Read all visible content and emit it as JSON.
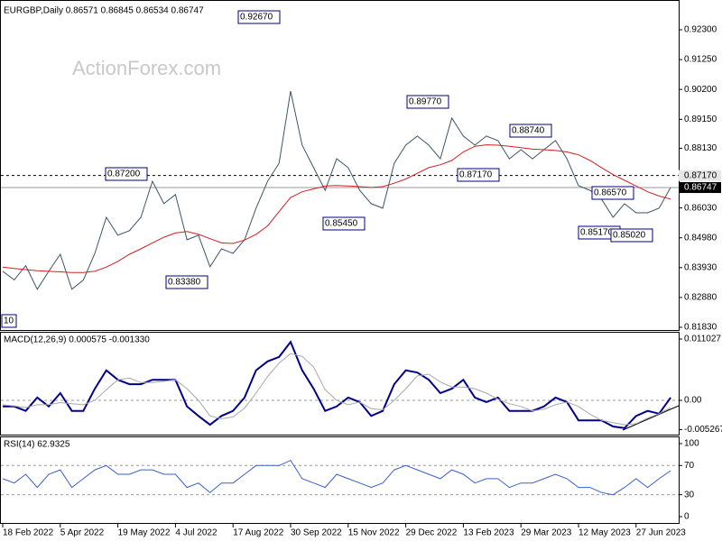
{
  "watermark": "ActionForex.com",
  "chart_data": [
    {
      "type": "line",
      "title": "EURGBP,Daily  0.86571 0.86845 0.86534 0.86747",
      "categories": [
        "18 Feb 2022",
        null,
        null,
        null,
        null,
        "5 Apr 2022",
        null,
        null,
        null,
        null,
        "19 May 2022",
        null,
        null,
        null,
        null,
        "4 Jul 2022",
        null,
        null,
        null,
        null,
        "17 Aug 2022",
        null,
        null,
        null,
        null,
        "30 Sep 2022",
        null,
        null,
        null,
        null,
        "15 Nov 2022",
        null,
        null,
        null,
        null,
        "29 Dec 2022",
        null,
        null,
        null,
        null,
        "13 Feb 2023",
        null,
        null,
        null,
        null,
        "29 Mar 2023",
        null,
        null,
        null,
        null,
        "12 May 2023",
        null,
        null,
        null,
        null,
        "27 Jun 2023",
        null,
        null,
        null
      ],
      "series": [
        {
          "color": "#3b5566",
          "values": [
            0.838,
            0.835,
            0.84,
            0.8317,
            0.838,
            0.844,
            0.8317,
            0.8349,
            0.8443,
            0.857,
            0.8507,
            0.8523,
            0.857,
            0.8697,
            0.8618,
            0.865,
            0.8491,
            0.8507,
            0.8396,
            0.8459,
            0.8443,
            0.8491,
            0.8602,
            0.8697,
            0.876,
            0.9014,
            0.8824,
            0.8745,
            0.8665,
            0.8776,
            0.8745,
            0.8665,
            0.8618,
            0.8602,
            0.876,
            0.8824,
            0.8856,
            0.8824,
            0.8776,
            0.8919,
            0.8856,
            0.8824,
            0.8856,
            0.884,
            0.8776,
            0.8808,
            0.8776,
            0.8808,
            0.884,
            0.8776,
            0.8681,
            0.8665,
            0.8634,
            0.857,
            0.8618,
            0.8586,
            0.8586,
            0.8602,
            0.8675
          ]
        },
        {
          "color": "#d42020",
          "values": [
            0.8395,
            0.839,
            0.8386,
            0.8382,
            0.838,
            0.8378,
            0.8376,
            0.8376,
            0.838,
            0.8395,
            0.8415,
            0.844,
            0.8459,
            0.848,
            0.85,
            0.8515,
            0.852,
            0.851,
            0.8495,
            0.848,
            0.8478,
            0.849,
            0.851,
            0.854,
            0.859,
            0.864,
            0.866,
            0.867,
            0.868,
            0.8682,
            0.868,
            0.8678,
            0.8675,
            0.8678,
            0.869,
            0.8705,
            0.8725,
            0.8745,
            0.8755,
            0.877,
            0.88,
            0.882,
            0.8825,
            0.8824,
            0.882,
            0.8815,
            0.881,
            0.8808,
            0.8805,
            0.88,
            0.879,
            0.877,
            0.8745,
            0.872,
            0.87,
            0.868,
            0.866,
            0.8645,
            0.8634
          ]
        }
      ],
      "ylim": [
        0.81703,
        0.93315
      ],
      "yticks": [
        {
          "value": 0.923,
          "label": "0.92300"
        },
        {
          "value": 0.9125,
          "label": "0.91250"
        },
        {
          "value": 0.902,
          "label": "0.90200"
        },
        {
          "value": 0.8915,
          "label": "0.89150"
        },
        {
          "value": 0.8813,
          "label": "0.88130"
        },
        {
          "value": 0.8603,
          "label": "0.86030"
        },
        {
          "value": 0.8498,
          "label": "0.84980"
        },
        {
          "value": 0.8393,
          "label": "0.83930"
        },
        {
          "value": 0.8288,
          "label": "0.82880"
        },
        {
          "value": 0.8183,
          "label": "0.81830"
        }
      ],
      "grid": false,
      "reference_lines": [
        {
          "value": 0.8717,
          "label": "0.87170",
          "style": "dashed"
        },
        {
          "value": 0.86747,
          "label": "0.86747",
          "style": "solid"
        }
      ],
      "annotations": [
        {
          "label": "0.92670"
        },
        {
          "label": "0.87200"
        },
        {
          "label": "0.83380"
        },
        {
          "label": "0.85450"
        },
        {
          "label": "0.89770"
        },
        {
          "label": "0.87170"
        },
        {
          "label": "0.88740"
        },
        {
          "label": "0.86570"
        },
        {
          "label": "0.85170"
        },
        {
          "label": "0.85020"
        },
        {
          "label": "10"
        }
      ]
    },
    {
      "type": "line",
      "title": "MACD(12,26,9) 0.000575 -0.001330",
      "series": [
        {
          "color": "#00008b",
          "values": [
            -0.0011,
            -0.0011,
            -0.0019,
            0.0005,
            -0.0011,
            0.0013,
            -0.0019,
            -0.0019,
            0.0021,
            0.0054,
            0.0037,
            0.0029,
            0.0029,
            0.0037,
            0.0037,
            0.0037,
            -0.0011,
            -0.0028,
            -0.0044,
            -0.0028,
            -0.0019,
            0.0005,
            0.0054,
            0.007,
            0.0078,
            0.0105,
            0.0054,
            0.0021,
            -0.0019,
            -0.0011,
            0.0005,
            -0.0003,
            -0.0028,
            -0.0019,
            0.0029,
            0.0054,
            0.005,
            0.0037,
            0.0013,
            0.0021,
            0.0037,
            0.0005,
            -0.0003,
            0.0005,
            -0.0019,
            -0.0019,
            -0.0019,
            -0.0011,
            0.0005,
            -0.0003,
            -0.0036,
            -0.0036,
            -0.0036,
            -0.0047,
            -0.005,
            -0.0028,
            -0.0019,
            -0.0024,
            0.0005
          ]
        },
        {
          "color": "#a8a8a8",
          "values": [
            -0.0008,
            -0.001,
            -0.0013,
            -0.0008,
            -0.0008,
            -0.0004,
            -0.0006,
            -0.0008,
            0.0,
            0.0019,
            0.0037,
            0.004,
            0.0032,
            0.0032,
            0.0034,
            0.0037,
            0.0021,
            0.0,
            -0.0028,
            -0.0033,
            -0.003,
            -0.0014,
            0.0013,
            0.0043,
            0.0067,
            0.0084,
            0.0079,
            0.006,
            0.0019,
            0.0,
            -0.0008,
            -0.0003,
            -0.0015,
            -0.0017,
            0.0,
            0.0021,
            0.0044,
            0.0047,
            0.0033,
            0.0024,
            0.0024,
            0.0021,
            0.0013,
            0.0002,
            -0.0006,
            -0.0011,
            -0.0019,
            -0.0016,
            -0.0008,
            -0.0003,
            -0.0011,
            -0.0025,
            -0.0036,
            -0.004,
            -0.0044,
            -0.0042,
            -0.0032,
            -0.0024,
            -0.0013
          ]
        }
      ],
      "ylim": [
        -0.006324,
        0.012162
      ],
      "yticks": [
        0.011027,
        {
          "value": 0,
          "label": "0.00"
        },
        -0.005267
      ],
      "grid": true
    },
    {
      "type": "line",
      "title": "RSI(14) 62.9325",
      "series": [
        {
          "color": "#3a5fcd",
          "values": [
            52,
            46,
            58,
            40,
            58,
            64,
            40,
            52,
            64,
            70,
            58,
            58,
            64,
            64,
            58,
            58,
            40,
            46,
            33,
            46,
            46,
            58,
            70,
            70,
            70,
            77,
            52,
            46,
            40,
            58,
            52,
            46,
            40,
            46,
            64,
            70,
            64,
            58,
            52,
            64,
            58,
            46,
            52,
            52,
            40,
            46,
            46,
            52,
            58,
            52,
            40,
            40,
            33,
            30,
            40,
            52,
            40,
            52,
            62.9325
          ]
        }
      ],
      "ylim": [
        -9.9,
        108.6
      ],
      "yticks": [
        100,
        70,
        30,
        0
      ],
      "grid": true
    }
  ]
}
